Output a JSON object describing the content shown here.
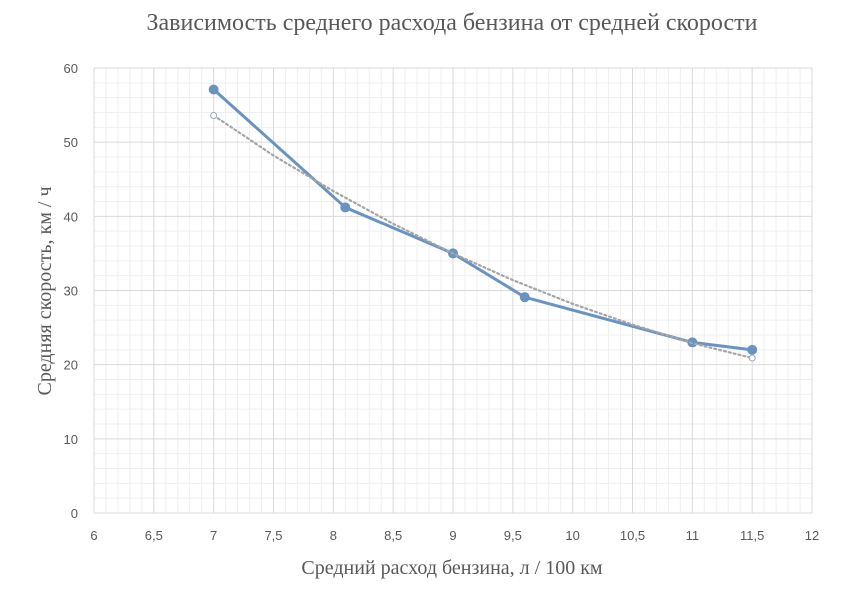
{
  "chart_data": {
    "type": "scatter",
    "title": "Зависимость среднего расхода бензина от средней скорости",
    "xlabel": "Средний расход бензина, л / 100 км",
    "ylabel": "Средняя скорость, км / ч",
    "xlim": [
      6,
      12
    ],
    "ylim": [
      0,
      60
    ],
    "x_ticks": [
      "6",
      "6,5",
      "7",
      "7,5",
      "8",
      "8,5",
      "9",
      "9,5",
      "10",
      "10,5",
      "11",
      "11,5",
      "12"
    ],
    "y_ticks": [
      "0",
      "10",
      "20",
      "30",
      "40",
      "50",
      "60"
    ],
    "grid": true,
    "series": [
      {
        "kind": "line-markers",
        "color": "#6a93c0",
        "points": [
          {
            "x": 7,
            "y": 57.1
          },
          {
            "x": 8.1,
            "y": 41.2
          },
          {
            "x": 9,
            "y": 35
          },
          {
            "x": 9.6,
            "y": 29.1
          },
          {
            "x": 11,
            "y": 23
          },
          {
            "x": 11.5,
            "y": 22
          }
        ]
      },
      {
        "kind": "trendline-dotted",
        "color": "#a6a6a6",
        "points": [
          {
            "x": 7,
            "y": 53.6
          },
          {
            "x": 7.5,
            "y": 48.2
          },
          {
            "x": 8,
            "y": 43.4
          },
          {
            "x": 8.5,
            "y": 39
          },
          {
            "x": 9,
            "y": 35
          },
          {
            "x": 9.5,
            "y": 31.4
          },
          {
            "x": 10,
            "y": 28.2
          },
          {
            "x": 10.5,
            "y": 25.4
          },
          {
            "x": 11,
            "y": 22.9
          },
          {
            "x": 11.5,
            "y": 20.9
          }
        ]
      }
    ]
  }
}
